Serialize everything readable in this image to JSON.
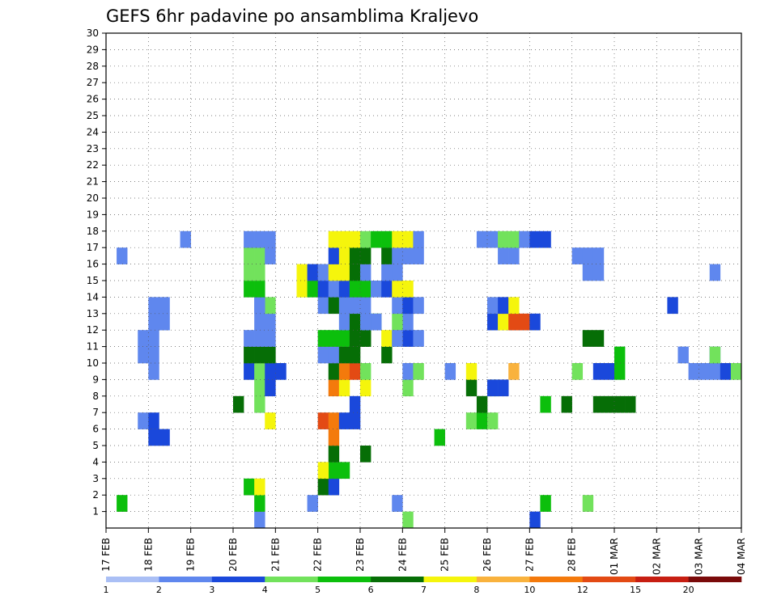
{
  "chart_data": {
    "type": "heatmap",
    "title": "GEFS 6hr padavine po ansamblima Kraljevo",
    "xlabel": "",
    "ylabel": "",
    "x_ticks": [
      "17 FEB",
      "18 FEB",
      "19 FEB",
      "20 FEB",
      "21 FEB",
      "22 FEB",
      "23 FEB",
      "24 FEB",
      "25 FEB",
      "26 FEB",
      "27 FEB",
      "28 FEB",
      "01 MAR",
      "02 MAR",
      "03 MAR",
      "04 MAR"
    ],
    "y_ticks": [
      "1",
      "2",
      "3",
      "4",
      "5",
      "6",
      "7",
      "8",
      "9",
      "10",
      "11",
      "12",
      "13",
      "14",
      "15",
      "16",
      "17",
      "18",
      "19",
      "20",
      "21",
      "22",
      "23",
      "24",
      "25",
      "26",
      "27",
      "28",
      "29",
      "30"
    ],
    "xlim": [
      0,
      60
    ],
    "ylim": [
      0,
      30
    ],
    "grid": true,
    "legend": "bottom",
    "colorbar": {
      "labels": [
        "1",
        "2",
        "3",
        "4",
        "5",
        "6",
        "7",
        "8",
        "10",
        "12",
        "15",
        "20"
      ],
      "colors": [
        "#aabff5",
        "#5f87ee",
        "#1a48db",
        "#72e25c",
        "#0cbf0c",
        "#066e06",
        "#f5f50c",
        "#f9b23d",
        "#f47a0c",
        "#e34a14",
        "#c71e12",
        "#7a0a0a"
      ]
    },
    "cells": [
      [
        14,
        0,
        1
      ],
      [
        28,
        0,
        3
      ],
      [
        40,
        0,
        2
      ],
      [
        1,
        1,
        4
      ],
      [
        14,
        1,
        4
      ],
      [
        19,
        1,
        1
      ],
      [
        27,
        1,
        1
      ],
      [
        41,
        1,
        4
      ],
      [
        45,
        1,
        3
      ],
      [
        13,
        2,
        4
      ],
      [
        14,
        2,
        6
      ],
      [
        20,
        2,
        5
      ],
      [
        21,
        2,
        2
      ],
      [
        21,
        3,
        4
      ],
      [
        22,
        3,
        4
      ],
      [
        20,
        3,
        6
      ],
      [
        21,
        4,
        5
      ],
      [
        24,
        4,
        5
      ],
      [
        21,
        5,
        8
      ],
      [
        31,
        5,
        4
      ],
      [
        4,
        5,
        2
      ],
      [
        5,
        5,
        2
      ],
      [
        3,
        6,
        1
      ],
      [
        4,
        6,
        2
      ],
      [
        15,
        6,
        6
      ],
      [
        20,
        6,
        9
      ],
      [
        21,
        6,
        8
      ],
      [
        22,
        6,
        2
      ],
      [
        23,
        6,
        2
      ],
      [
        34,
        6,
        3
      ],
      [
        35,
        6,
        4
      ],
      [
        36,
        6,
        3
      ],
      [
        12,
        7,
        5
      ],
      [
        14,
        7,
        3
      ],
      [
        23,
        7,
        2
      ],
      [
        35,
        7,
        5
      ],
      [
        41,
        7,
        4
      ],
      [
        43,
        7,
        5
      ],
      [
        46,
        7,
        5
      ],
      [
        47,
        7,
        5
      ],
      [
        48,
        7,
        5
      ],
      [
        49,
        7,
        5
      ],
      [
        14,
        8,
        3
      ],
      [
        15,
        8,
        2
      ],
      [
        21,
        8,
        8
      ],
      [
        22,
        8,
        6
      ],
      [
        24,
        8,
        6
      ],
      [
        28,
        8,
        3
      ],
      [
        34,
        8,
        5
      ],
      [
        36,
        8,
        3
      ],
      [
        36,
        8,
        2
      ],
      [
        37,
        8,
        2
      ],
      [
        4,
        9,
        1
      ],
      [
        4,
        10,
        1
      ],
      [
        13,
        9,
        2
      ],
      [
        14,
        9,
        3
      ],
      [
        15,
        9,
        2
      ],
      [
        16,
        9,
        2
      ],
      [
        21,
        9,
        5
      ],
      [
        22,
        9,
        8
      ],
      [
        23,
        9,
        9
      ],
      [
        24,
        9,
        3
      ],
      [
        28,
        9,
        1
      ],
      [
        29,
        9,
        3
      ],
      [
        32,
        9,
        1
      ],
      [
        34,
        9,
        6
      ],
      [
        38,
        9,
        7
      ],
      [
        44,
        9,
        3
      ],
      [
        46,
        9,
        2
      ],
      [
        47,
        9,
        2
      ],
      [
        48,
        9,
        4
      ],
      [
        48,
        10,
        4
      ],
      [
        55,
        9,
        1
      ],
      [
        56,
        9,
        1
      ],
      [
        57,
        9,
        1
      ],
      [
        57,
        10,
        2
      ],
      [
        58,
        9,
        2
      ],
      [
        59,
        9,
        3
      ],
      [
        3,
        10,
        1
      ],
      [
        13,
        10,
        5
      ],
      [
        14,
        10,
        5
      ],
      [
        15,
        10,
        5
      ],
      [
        20,
        10,
        1
      ],
      [
        21,
        10,
        1
      ],
      [
        22,
        10,
        5
      ],
      [
        23,
        10,
        5
      ],
      [
        26,
        10,
        5
      ],
      [
        24,
        11,
        5
      ],
      [
        26,
        11,
        6
      ],
      [
        27,
        11,
        3
      ],
      [
        28,
        11,
        2
      ],
      [
        29,
        11,
        1
      ],
      [
        28,
        12,
        1
      ],
      [
        27,
        12,
        3
      ],
      [
        54,
        10,
        1
      ],
      [
        57,
        10,
        3
      ],
      [
        3,
        11,
        1
      ],
      [
        4,
        11,
        1
      ],
      [
        13,
        11,
        1
      ],
      [
        14,
        11,
        1
      ],
      [
        15,
        11,
        1
      ],
      [
        20,
        11,
        4
      ],
      [
        21,
        11,
        4
      ],
      [
        22,
        11,
        4
      ],
      [
        23,
        11,
        5
      ],
      [
        24,
        11,
        5
      ],
      [
        24,
        12,
        4
      ],
      [
        25,
        12,
        4
      ],
      [
        23,
        12,
        2
      ],
      [
        24,
        12,
        1
      ],
      [
        27,
        11,
        1
      ],
      [
        45,
        11,
        5
      ],
      [
        46,
        11,
        5
      ],
      [
        5,
        12,
        1
      ],
      [
        4,
        12,
        1
      ],
      [
        14,
        12,
        1
      ],
      [
        15,
        12,
        1
      ],
      [
        22,
        12,
        1
      ],
      [
        23,
        12,
        5
      ],
      [
        24,
        12,
        1
      ],
      [
        25,
        12,
        1
      ],
      [
        36,
        12,
        2
      ],
      [
        37,
        12,
        6
      ],
      [
        38,
        12,
        9
      ],
      [
        39,
        12,
        9
      ],
      [
        40,
        12,
        2
      ],
      [
        5,
        13,
        1
      ],
      [
        4,
        13,
        1
      ],
      [
        14,
        13,
        1
      ],
      [
        15,
        13,
        3
      ],
      [
        14,
        13,
        1
      ],
      [
        20,
        13,
        1
      ],
      [
        21,
        13,
        5
      ],
      [
        22,
        13,
        1
      ],
      [
        23,
        13,
        1
      ],
      [
        24,
        13,
        1
      ],
      [
        27,
        13,
        1
      ],
      [
        28,
        13,
        2
      ],
      [
        29,
        13,
        1
      ],
      [
        36,
        13,
        1
      ],
      [
        37,
        13,
        2
      ],
      [
        38,
        13,
        6
      ],
      [
        53,
        13,
        2
      ],
      [
        13,
        14,
        4
      ],
      [
        14,
        14,
        4
      ],
      [
        18,
        14,
        6
      ],
      [
        19,
        14,
        4
      ],
      [
        20,
        14,
        2
      ],
      [
        21,
        14,
        1
      ],
      [
        22,
        14,
        2
      ],
      [
        23,
        14,
        4
      ],
      [
        24,
        14,
        4
      ],
      [
        25,
        14,
        1
      ],
      [
        26,
        14,
        2
      ],
      [
        27,
        14,
        6
      ],
      [
        28,
        14,
        6
      ],
      [
        13,
        15,
        3
      ],
      [
        14,
        15,
        3
      ],
      [
        18,
        15,
        6
      ],
      [
        19,
        15,
        2
      ],
      [
        20,
        15,
        1
      ],
      [
        21,
        15,
        6
      ],
      [
        22,
        15,
        6
      ],
      [
        23,
        15,
        5
      ],
      [
        24,
        15,
        1
      ],
      [
        26,
        15,
        1
      ],
      [
        27,
        15,
        1
      ],
      [
        45,
        15,
        1
      ],
      [
        46,
        15,
        1
      ],
      [
        57,
        15,
        1
      ],
      [
        1,
        16,
        1
      ],
      [
        13,
        16,
        3
      ],
      [
        14,
        16,
        3
      ],
      [
        15,
        16,
        1
      ],
      [
        21,
        16,
        2
      ],
      [
        22,
        16,
        6
      ],
      [
        23,
        16,
        5
      ],
      [
        24,
        16,
        5
      ],
      [
        26,
        16,
        5
      ],
      [
        27,
        16,
        1
      ],
      [
        28,
        16,
        1
      ],
      [
        29,
        16,
        1
      ],
      [
        37,
        16,
        1
      ],
      [
        38,
        16,
        1
      ],
      [
        44,
        16,
        1
      ],
      [
        45,
        16,
        1
      ],
      [
        46,
        16,
        1
      ],
      [
        7,
        17,
        1
      ],
      [
        13,
        17,
        1
      ],
      [
        14,
        17,
        1
      ],
      [
        15,
        17,
        1
      ],
      [
        21,
        17,
        6
      ],
      [
        22,
        17,
        6
      ],
      [
        23,
        17,
        6
      ],
      [
        24,
        17,
        3
      ],
      [
        25,
        17,
        4
      ],
      [
        26,
        17,
        4
      ],
      [
        27,
        17,
        6
      ],
      [
        28,
        17,
        6
      ],
      [
        29,
        17,
        1
      ],
      [
        35,
        17,
        1
      ],
      [
        36,
        17,
        1
      ],
      [
        37,
        17,
        3
      ],
      [
        38,
        17,
        3
      ],
      [
        39,
        17,
        1
      ],
      [
        40,
        17,
        2
      ],
      [
        41,
        17,
        2
      ]
    ]
  }
}
